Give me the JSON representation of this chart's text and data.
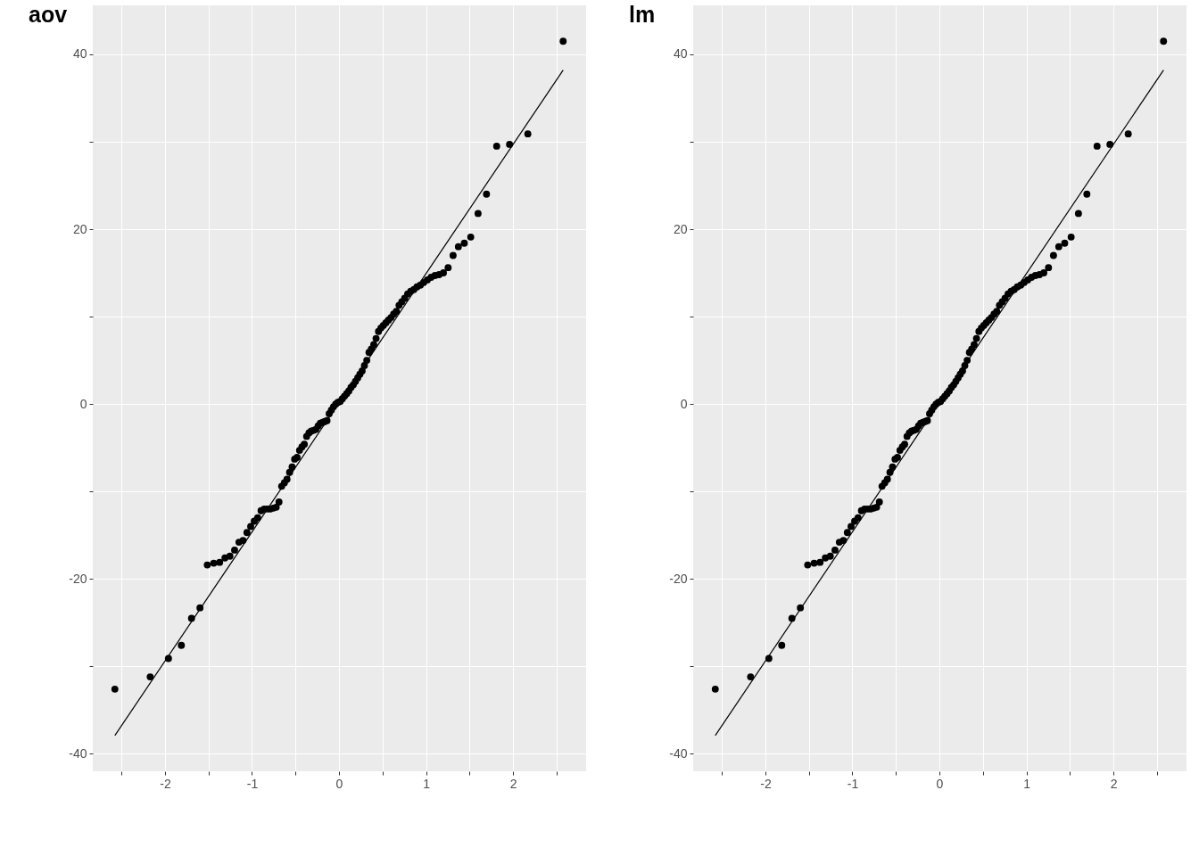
{
  "chart_data": [
    {
      "type": "scatter",
      "title": "aov",
      "xlim": [
        -2.83,
        2.84
      ],
      "ylim": [
        -42.0,
        45.6
      ],
      "xticks": [
        {
          "value": -2.5,
          "label": null
        },
        -2,
        {
          "value": -1.5,
          "label": null
        },
        -1,
        {
          "value": -0.5,
          "label": null
        },
        0,
        {
          "value": 0.5,
          "label": null
        },
        1,
        {
          "value": 1.5,
          "label": null
        },
        2,
        {
          "value": 2.5,
          "label": null
        }
      ],
      "yticks": [
        -40,
        {
          "value": -30,
          "label": null
        },
        -20,
        {
          "value": -10,
          "label": null
        },
        0,
        {
          "value": 10,
          "label": null
        },
        20,
        {
          "value": 30,
          "label": null
        },
        40
      ],
      "grid": true,
      "series": [
        {
          "type": "scatter",
          "marker": "circle",
          "color": "#000000",
          "x": [
            -2.576,
            -2.17,
            -1.96,
            -1.812,
            -1.695,
            -1.598,
            -1.514,
            -1.44,
            -1.372,
            -1.311,
            -1.254,
            -1.2,
            -1.15,
            -1.103,
            -1.058,
            -1.015,
            -0.974,
            -0.935,
            -0.896,
            -0.86,
            -0.824,
            -0.789,
            -0.755,
            -0.722,
            -0.69,
            -0.659,
            -0.628,
            -0.598,
            -0.568,
            -0.539,
            -0.51,
            -0.482,
            -0.454,
            -0.426,
            -0.399,
            -0.372,
            -0.345,
            -0.319,
            -0.292,
            -0.266,
            -0.24,
            -0.215,
            -0.189,
            -0.164,
            -0.138,
            -0.113,
            -0.088,
            -0.063,
            -0.038,
            -0.013,
            0.013,
            0.038,
            0.063,
            0.088,
            0.113,
            0.138,
            0.164,
            0.189,
            0.215,
            0.24,
            0.266,
            0.292,
            0.319,
            0.345,
            0.372,
            0.399,
            0.426,
            0.454,
            0.482,
            0.51,
            0.539,
            0.568,
            0.598,
            0.628,
            0.659,
            0.69,
            0.722,
            0.755,
            0.789,
            0.824,
            0.86,
            0.896,
            0.935,
            0.974,
            1.015,
            1.058,
            1.103,
            1.15,
            1.2,
            1.254,
            1.311,
            1.372,
            1.44,
            1.514,
            1.598,
            1.695,
            1.812,
            1.96,
            2.17,
            2.576
          ],
          "values": [
            -32.6,
            -31.2,
            -29.1,
            -27.6,
            -24.5,
            -23.3,
            -18.4,
            -18.2,
            -18.1,
            -17.6,
            -17.4,
            -16.7,
            -15.8,
            -15.6,
            -14.7,
            -14.0,
            -13.4,
            -13.0,
            -12.2,
            -12.0,
            -12.0,
            -12.0,
            -11.9,
            -11.8,
            -11.2,
            -9.4,
            -9.0,
            -8.6,
            -7.8,
            -7.2,
            -6.3,
            -6.1,
            -5.3,
            -4.9,
            -4.6,
            -3.7,
            -3.3,
            -3.1,
            -3.0,
            -2.9,
            -2.5,
            -2.2,
            -2.1,
            -2.0,
            -1.9,
            -1.1,
            -0.7,
            -0.3,
            0.0,
            0.2,
            0.3,
            0.6,
            0.9,
            1.2,
            1.5,
            1.9,
            2.2,
            2.6,
            3.0,
            3.4,
            3.8,
            4.4,
            5.0,
            5.9,
            6.3,
            6.8,
            7.5,
            8.3,
            8.7,
            9.0,
            9.3,
            9.6,
            9.9,
            10.3,
            10.6,
            11.3,
            11.7,
            12.1,
            12.6,
            12.9,
            13.1,
            13.4,
            13.6,
            13.9,
            14.2,
            14.5,
            14.7,
            14.8,
            15.0,
            15.6,
            17.0,
            18.0,
            18.4,
            19.1,
            21.8,
            24.0,
            29.5,
            29.7,
            30.9,
            41.5
          ]
        },
        {
          "type": "line",
          "color": "#000000",
          "x": [
            -2.576,
            2.576
          ],
          "values": [
            -37.9,
            38.2
          ]
        }
      ]
    },
    {
      "type": "scatter",
      "title": "lm",
      "xlim": [
        -2.83,
        2.84
      ],
      "ylim": [
        -42.0,
        45.6
      ],
      "xticks": [
        {
          "value": -2.5,
          "label": null
        },
        -2,
        {
          "value": -1.5,
          "label": null
        },
        -1,
        {
          "value": -0.5,
          "label": null
        },
        0,
        {
          "value": 0.5,
          "label": null
        },
        1,
        {
          "value": 1.5,
          "label": null
        },
        2,
        {
          "value": 2.5,
          "label": null
        }
      ],
      "yticks": [
        -40,
        {
          "value": -30,
          "label": null
        },
        -20,
        {
          "value": -10,
          "label": null
        },
        0,
        {
          "value": 10,
          "label": null
        },
        20,
        {
          "value": 30,
          "label": null
        },
        40
      ],
      "grid": true,
      "series": [
        {
          "type": "scatter",
          "marker": "circle",
          "color": "#000000",
          "x": [
            -2.576,
            -2.17,
            -1.96,
            -1.812,
            -1.695,
            -1.598,
            -1.514,
            -1.44,
            -1.372,
            -1.311,
            -1.254,
            -1.2,
            -1.15,
            -1.103,
            -1.058,
            -1.015,
            -0.974,
            -0.935,
            -0.896,
            -0.86,
            -0.824,
            -0.789,
            -0.755,
            -0.722,
            -0.69,
            -0.659,
            -0.628,
            -0.598,
            -0.568,
            -0.539,
            -0.51,
            -0.482,
            -0.454,
            -0.426,
            -0.399,
            -0.372,
            -0.345,
            -0.319,
            -0.292,
            -0.266,
            -0.24,
            -0.215,
            -0.189,
            -0.164,
            -0.138,
            -0.113,
            -0.088,
            -0.063,
            -0.038,
            -0.013,
            0.013,
            0.038,
            0.063,
            0.088,
            0.113,
            0.138,
            0.164,
            0.189,
            0.215,
            0.24,
            0.266,
            0.292,
            0.319,
            0.345,
            0.372,
            0.399,
            0.426,
            0.454,
            0.482,
            0.51,
            0.539,
            0.568,
            0.598,
            0.628,
            0.659,
            0.69,
            0.722,
            0.755,
            0.789,
            0.824,
            0.86,
            0.896,
            0.935,
            0.974,
            1.015,
            1.058,
            1.103,
            1.15,
            1.2,
            1.254,
            1.311,
            1.372,
            1.44,
            1.514,
            1.598,
            1.695,
            1.812,
            1.96,
            2.17,
            2.576
          ],
          "values": [
            -32.6,
            -31.2,
            -29.1,
            -27.6,
            -24.5,
            -23.3,
            -18.4,
            -18.2,
            -18.1,
            -17.6,
            -17.4,
            -16.7,
            -15.8,
            -15.6,
            -14.7,
            -14.0,
            -13.4,
            -13.0,
            -12.2,
            -12.0,
            -12.0,
            -12.0,
            -11.9,
            -11.8,
            -11.2,
            -9.4,
            -9.0,
            -8.6,
            -7.8,
            -7.2,
            -6.3,
            -6.1,
            -5.3,
            -4.9,
            -4.6,
            -3.7,
            -3.3,
            -3.1,
            -3.0,
            -2.9,
            -2.5,
            -2.2,
            -2.1,
            -2.0,
            -1.9,
            -1.1,
            -0.7,
            -0.3,
            0.0,
            0.2,
            0.3,
            0.6,
            0.9,
            1.2,
            1.5,
            1.9,
            2.2,
            2.6,
            3.0,
            3.4,
            3.8,
            4.4,
            5.0,
            5.9,
            6.3,
            6.8,
            7.5,
            8.3,
            8.7,
            9.0,
            9.3,
            9.6,
            9.9,
            10.3,
            10.6,
            11.3,
            11.7,
            12.1,
            12.6,
            12.9,
            13.1,
            13.4,
            13.6,
            13.9,
            14.2,
            14.5,
            14.7,
            14.8,
            15.0,
            15.6,
            17.0,
            18.0,
            18.4,
            19.1,
            21.8,
            24.0,
            29.5,
            29.7,
            30.9,
            41.5
          ]
        },
        {
          "type": "line",
          "color": "#000000",
          "x": [
            -2.576,
            2.576
          ],
          "values": [
            -37.9,
            38.2
          ]
        }
      ]
    }
  ]
}
